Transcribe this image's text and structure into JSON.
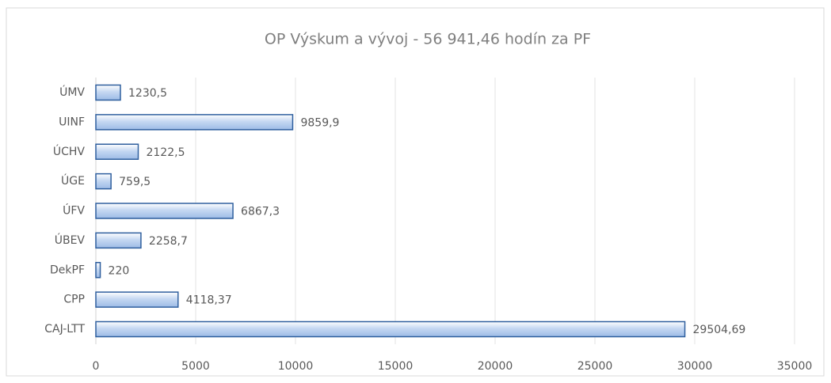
{
  "chart_data": {
    "type": "bar",
    "orientation": "horizontal",
    "title": "OP Výskum a vývoj - 56 941,46 hodín za PF",
    "categories": [
      "ÚMV",
      "UINF",
      "ÚCHV",
      "ÚGE",
      "ÚFV",
      "ÚBEV",
      "DekPF",
      "CPP",
      "CAJ-LTT"
    ],
    "values": [
      1230.5,
      9859.9,
      2122.5,
      759.5,
      6867.3,
      2258.7,
      220,
      4118.37,
      29504.69
    ],
    "value_labels": [
      "1230,5",
      "9859,9",
      "2122,5",
      "759,5",
      "6867,3",
      "2258,7",
      "220",
      "4118,37",
      "29504,69"
    ],
    "color": "#c5d8f2",
    "edge_color": "#2f5f9e",
    "xlim": [
      0,
      35000
    ],
    "xticks": [
      0,
      5000,
      10000,
      15000,
      20000,
      25000,
      30000,
      35000
    ],
    "grid": true
  }
}
